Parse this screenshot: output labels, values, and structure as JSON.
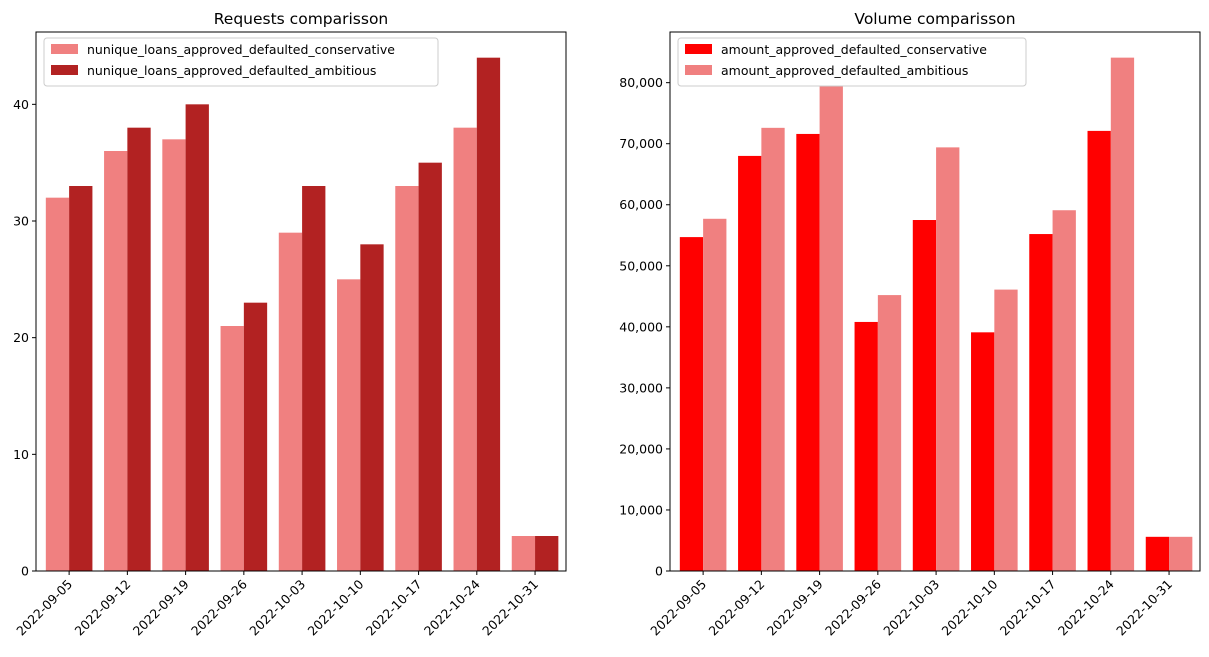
{
  "chart_data": [
    {
      "type": "bar",
      "title": "Requests comparisson",
      "xlabel": "",
      "ylabel": "",
      "categories": [
        "2022-09-05",
        "2022-09-12",
        "2022-09-19",
        "2022-09-26",
        "2022-10-03",
        "2022-10-10",
        "2022-10-17",
        "2022-10-24",
        "2022-10-31"
      ],
      "series": [
        {
          "name": "nunique_loans_approved_defaulted_conservative",
          "color": "#f08080",
          "values": [
            32,
            36,
            37,
            21,
            29,
            25,
            33,
            38,
            3
          ]
        },
        {
          "name": "nunique_loans_approved_defaulted_ambitious",
          "color": "#b22222",
          "values": [
            33,
            38,
            40,
            23,
            33,
            28,
            35,
            44,
            3
          ]
        }
      ],
      "ylim": [
        0,
        46.2
      ],
      "yticks": [
        0,
        10,
        20,
        30,
        40
      ],
      "ytick_labels": [
        "0",
        "10",
        "20",
        "30",
        "40"
      ],
      "legend": "upper-left",
      "grid": false
    },
    {
      "type": "bar",
      "title": "Volume comparisson",
      "xlabel": "",
      "ylabel": "",
      "categories": [
        "2022-09-05",
        "2022-09-12",
        "2022-09-19",
        "2022-09-26",
        "2022-10-03",
        "2022-10-10",
        "2022-10-17",
        "2022-10-24",
        "2022-10-31"
      ],
      "series": [
        {
          "name": "amount_approved_defaulted_conservative",
          "color": "#ff0000",
          "values": [
            54700,
            68000,
            71600,
            40800,
            57500,
            39100,
            55200,
            72100,
            5600
          ]
        },
        {
          "name": "amount_approved_defaulted_ambitious",
          "color": "#f08080",
          "values": [
            57700,
            72600,
            79500,
            45200,
            69400,
            46100,
            59100,
            84100,
            5600
          ]
        }
      ],
      "ylim": [
        0,
        88300
      ],
      "yticks": [
        0,
        10000,
        20000,
        30000,
        40000,
        50000,
        60000,
        70000,
        80000
      ],
      "ytick_labels": [
        "0",
        "10,000",
        "20,000",
        "30,000",
        "40,000",
        "50,000",
        "60,000",
        "70,000",
        "80,000"
      ],
      "legend": "upper-left",
      "grid": false
    }
  ]
}
